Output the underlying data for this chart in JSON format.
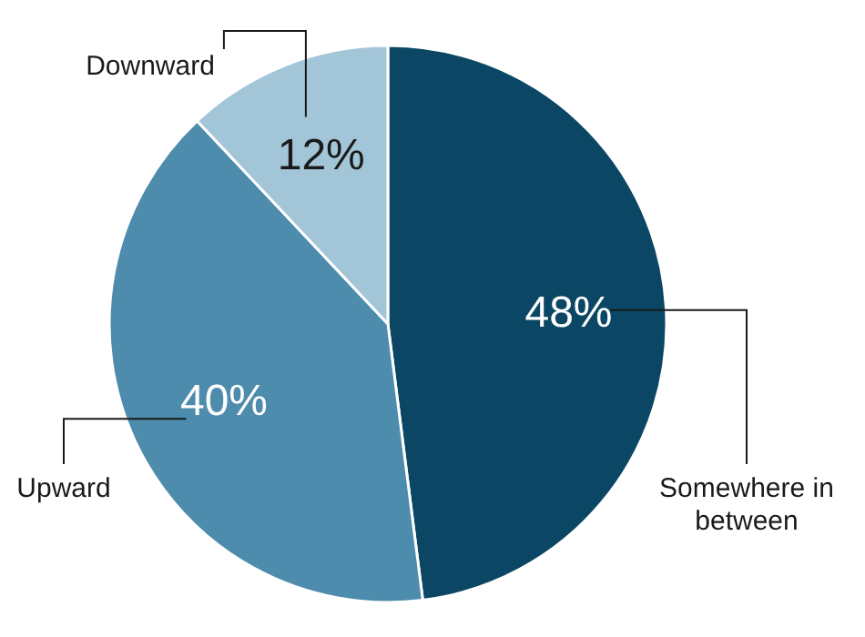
{
  "chart_data": {
    "type": "pie",
    "categories": [
      "Somewhere in between",
      "Upward",
      "Downward"
    ],
    "values": [
      48,
      40,
      12
    ],
    "value_labels": [
      "48%",
      "40%",
      "12%"
    ],
    "colors": [
      "#0b4764",
      "#4d8cac",
      "#a2c5d8"
    ]
  }
}
